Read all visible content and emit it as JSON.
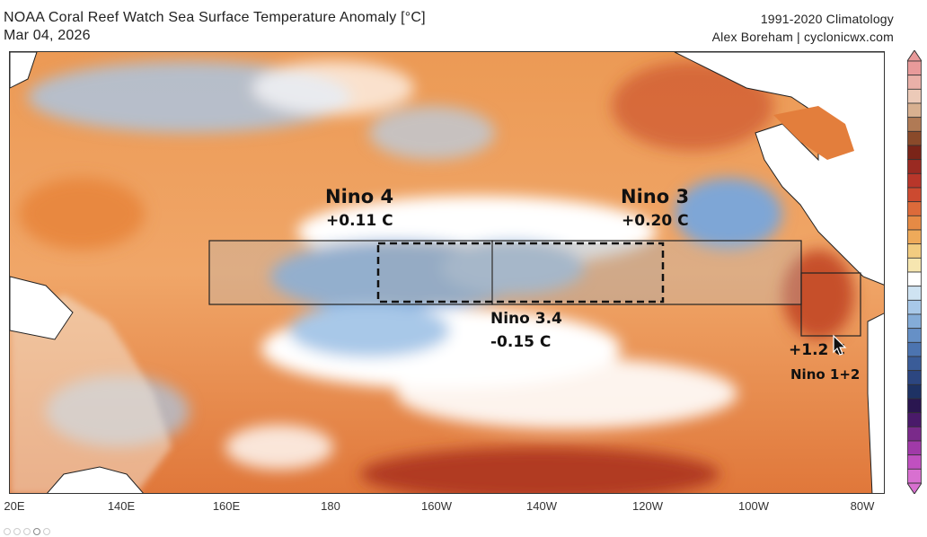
{
  "header": {
    "title": "NOAA Coral Reef Watch Sea Surface Temperature Anomaly [°C]",
    "date": "Mar 04, 2026",
    "climatology": "1991-2020 Climatology",
    "credit": "Alex Boreham | cyclonicwx.com"
  },
  "map": {
    "x_ticks": [
      "20E",
      "140E",
      "160E",
      "180",
      "160W",
      "140W",
      "120W",
      "100W",
      "80W"
    ],
    "colors": {
      "warm": "#e8853a",
      "hot": "#b83a22",
      "neutral": "#ffffff",
      "cool": "#8fb8de",
      "cold": "#3f6fb0"
    },
    "regions": [
      {
        "name": "Nino 4",
        "value": "+0.11 C"
      },
      {
        "name": "Nino 3",
        "value": "+0.20 C"
      },
      {
        "name": "Nino 3.4",
        "value": "-0.15 C"
      },
      {
        "name": "Nino 1+2",
        "value": "+1.2 C"
      }
    ]
  },
  "colorbar": {
    "colors": [
      "#e89a9a",
      "#eab0a8",
      "#eccab8",
      "#d8b090",
      "#b07a55",
      "#8a4a2a",
      "#7a2418",
      "#9a2a22",
      "#b8362a",
      "#cc4a30",
      "#dc6a3a",
      "#e68a45",
      "#eeaa5a",
      "#f2cc80",
      "#f6e6b0",
      "#ffffff",
      "#cfe3f2",
      "#a8c8e8",
      "#84acd8",
      "#6690c6",
      "#4c74b0",
      "#3a5c98",
      "#2c4680",
      "#1e3264",
      "#2a1650",
      "#4a1a6a",
      "#7a2a8a",
      "#a03aa8",
      "#c050c0",
      "#d870d0"
    ]
  },
  "toolbar": {
    "icons": [
      "home-icon",
      "back-icon",
      "forward-icon",
      "pan-icon",
      "zoom-icon"
    ]
  }
}
